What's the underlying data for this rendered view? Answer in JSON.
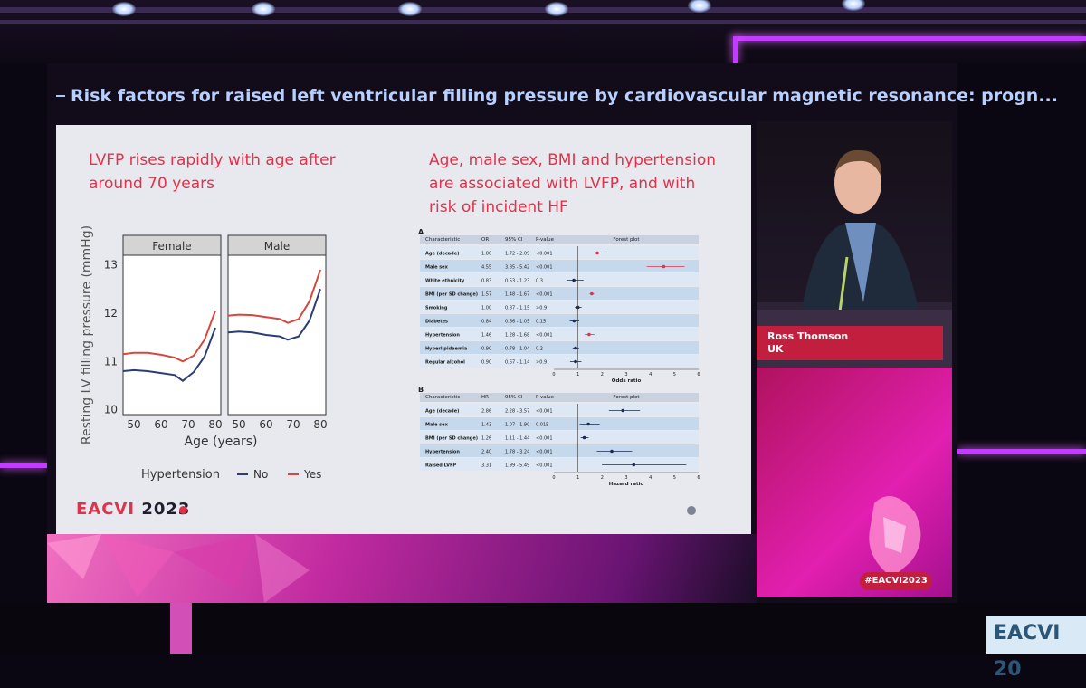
{
  "slide": {
    "title": "Risk factors for raised left ventricular filling pressure by cardiovascular magnetic resonance: progn...",
    "left_heading": "LVFP rises rapidly with age after around 70 years",
    "right_heading": "Age, male sex, BMI and hypertension are associated with LVFP, and with risk of incident HF",
    "logo_main": "EACVI",
    "logo_year": "2023"
  },
  "speaker": {
    "name": "Ross Thomson",
    "country": "UK"
  },
  "hashtag": "#EACVI2023",
  "corner_sign": "EACVI 20",
  "chart_data": [
    {
      "type": "line",
      "panels": [
        "Female",
        "Male"
      ],
      "xlabel": "Age (years)",
      "ylabel": "Resting LV filling pressure (mmHg)",
      "xticks": [
        50,
        60,
        70,
        80
      ],
      "yticks": [
        10,
        11,
        12,
        13
      ],
      "xlim": [
        46,
        82
      ],
      "ylim": [
        9.9,
        13.2
      ],
      "legend_title": "Hypertension",
      "series_labels": [
        "No",
        "Yes"
      ],
      "series_colors": [
        "#2b3e73",
        "#d8473e"
      ],
      "x": [
        46,
        50,
        55,
        60,
        65,
        68,
        72,
        76,
        80
      ],
      "female": {
        "no": [
          10.8,
          10.82,
          10.8,
          10.76,
          10.72,
          10.6,
          10.78,
          11.1,
          11.7
        ],
        "yes": [
          11.15,
          11.18,
          11.18,
          11.14,
          11.08,
          11.0,
          11.12,
          11.45,
          12.05
        ]
      },
      "male": {
        "no": [
          11.6,
          11.62,
          11.6,
          11.55,
          11.52,
          11.45,
          11.52,
          11.85,
          12.5
        ],
        "yes": [
          11.95,
          11.97,
          11.96,
          11.92,
          11.88,
          11.8,
          11.88,
          12.25,
          12.9
        ]
      }
    },
    {
      "type": "table",
      "panel_label": "A",
      "headers": [
        "Characteristic",
        "OR",
        "95% CI",
        "P-value",
        "Forest plot"
      ],
      "rows": [
        {
          "c": "Age (decade)",
          "v": "1.80",
          "ci": "1.72 - 2.09",
          "p": "<0.001",
          "est": 1.8,
          "lo": 1.72,
          "hi": 2.09,
          "sig": true
        },
        {
          "c": "Male sex",
          "v": "4.55",
          "ci": "3.85 - 5.42",
          "p": "<0.001",
          "est": 4.55,
          "lo": 3.85,
          "hi": 5.42,
          "sig": true
        },
        {
          "c": "White ethnicity",
          "v": "0.83",
          "ci": "0.53 - 1.23",
          "p": "0.3",
          "est": 0.83,
          "lo": 0.53,
          "hi": 1.23,
          "sig": false
        },
        {
          "c": "BMI (per SD change)",
          "v": "1.57",
          "ci": "1.48 - 1.67",
          "p": "<0.001",
          "est": 1.57,
          "lo": 1.48,
          "hi": 1.67,
          "sig": true
        },
        {
          "c": "Smoking",
          "v": "1.00",
          "ci": "0.87 - 1.15",
          "p": ">0.9",
          "est": 1.0,
          "lo": 0.87,
          "hi": 1.15,
          "sig": false
        },
        {
          "c": "Diabetes",
          "v": "0.84",
          "ci": "0.66 - 1.05",
          "p": "0.15",
          "est": 0.84,
          "lo": 0.66,
          "hi": 1.05,
          "sig": false
        },
        {
          "c": "Hypertension",
          "v": "1.46",
          "ci": "1.28 - 1.68",
          "p": "<0.001",
          "est": 1.46,
          "lo": 1.28,
          "hi": 1.68,
          "sig": true
        },
        {
          "c": "Hyperlipidaemia",
          "v": "0.90",
          "ci": "0.78 - 1.04",
          "p": "0.2",
          "est": 0.9,
          "lo": 0.78,
          "hi": 1.04,
          "sig": false
        },
        {
          "c": "Regular alcohol",
          "v": "0.90",
          "ci": "0.67 - 1.14",
          "p": ">0.9",
          "est": 0.9,
          "lo": 0.67,
          "hi": 1.14,
          "sig": false
        }
      ],
      "axis_label": "Odds ratio",
      "axis_ticks": [
        0,
        1,
        2,
        3,
        4,
        5,
        6
      ],
      "xlim": [
        0,
        6
      ]
    },
    {
      "type": "table",
      "panel_label": "B",
      "headers": [
        "Characteristic",
        "HR",
        "95% CI",
        "P-value",
        "Forest plot"
      ],
      "rows": [
        {
          "c": "Age (decade)",
          "v": "2.86",
          "ci": "2.28 - 3.57",
          "p": "<0.001",
          "est": 2.86,
          "lo": 2.28,
          "hi": 3.57,
          "sig": false
        },
        {
          "c": "Male sex",
          "v": "1.43",
          "ci": "1.07 - 1.90",
          "p": "0.015",
          "est": 1.43,
          "lo": 1.07,
          "hi": 1.9,
          "sig": false
        },
        {
          "c": "BMI (per SD change)",
          "v": "1.26",
          "ci": "1.11 - 1.44",
          "p": "<0.001",
          "est": 1.26,
          "lo": 1.11,
          "hi": 1.44,
          "sig": false
        },
        {
          "c": "Hypertension",
          "v": "2.40",
          "ci": "1.78 - 3.24",
          "p": "<0.001",
          "est": 2.4,
          "lo": 1.78,
          "hi": 3.24,
          "sig": false
        },
        {
          "c": "Raised LVFP",
          "v": "3.31",
          "ci": "1.99 - 5.49",
          "p": "<0.001",
          "est": 3.31,
          "lo": 1.99,
          "hi": 5.49,
          "sig": false
        }
      ],
      "axis_label": "Hazard ratio",
      "axis_ticks": [
        0,
        1,
        2,
        3,
        4,
        5,
        6
      ],
      "xlim": [
        0,
        6
      ]
    }
  ]
}
